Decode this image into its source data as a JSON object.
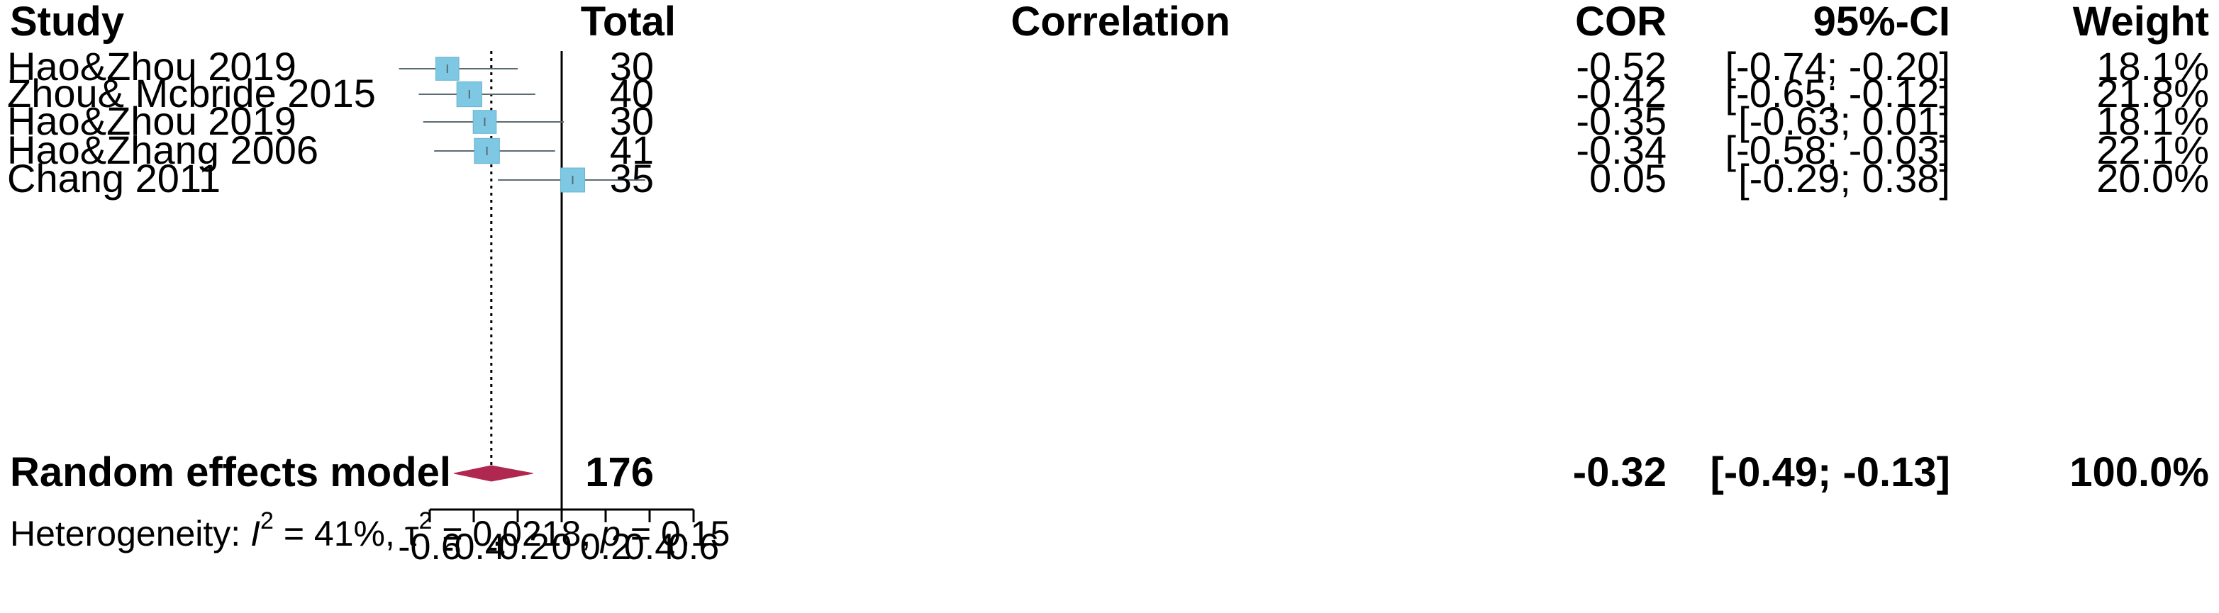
{
  "chart_data": {
    "type": "forest",
    "headers": {
      "study": "Study",
      "total": "Total",
      "correlation": "Correlation",
      "cor": "COR",
      "ci": "95%-CI",
      "weight": "Weight"
    },
    "studies": [
      {
        "label": "Hao&Zhou  2019",
        "total": "30",
        "cor": -0.52,
        "lower": -0.74,
        "upper": -0.2,
        "cor_text": "-0.52",
        "ci_text": "[-0.74; -0.20]",
        "weight": 18.1,
        "weight_text": "18.1%"
      },
      {
        "label": "Zhou& Mcbride  2015",
        "total": "40",
        "cor": -0.42,
        "lower": -0.65,
        "upper": -0.12,
        "cor_text": "-0.42",
        "ci_text": "[-0.65; -0.12]",
        "weight": 21.8,
        "weight_text": "21.8%"
      },
      {
        "label": "Hao&Zhou  2019",
        "total": "30",
        "cor": -0.35,
        "lower": -0.63,
        "upper": 0.01,
        "cor_text": "-0.35",
        "ci_text": "[-0.63;  0.01]",
        "weight": 18.1,
        "weight_text": "18.1%"
      },
      {
        "label": "Hao&Zhang  2006",
        "total": "41",
        "cor": -0.34,
        "lower": -0.58,
        "upper": -0.03,
        "cor_text": "-0.34",
        "ci_text": "[-0.58; -0.03]",
        "weight": 22.1,
        "weight_text": "22.1%"
      },
      {
        "label": "Chang  2011",
        "total": "35",
        "cor": 0.05,
        "lower": -0.29,
        "upper": 0.38,
        "cor_text": "0.05",
        "ci_text": "[-0.29;  0.38]",
        "weight": 20.0,
        "weight_text": "20.0%"
      }
    ],
    "summary": {
      "label": "Random effects model",
      "total": "176",
      "cor": -0.32,
      "lower": -0.49,
      "upper": -0.13,
      "cor_text": "-0.32",
      "ci_text": "[-0.49; -0.13]",
      "weight_text": "100.0%"
    },
    "heterogeneity": {
      "prefix": "Heterogeneity: ",
      "i2_symbol": "I",
      "i2_value": " = 41%, ",
      "tau2_symbol": "τ",
      "tau2_value": " = 0.0218, ",
      "p_symbol": "p",
      "p_value": " = 0.15",
      "superscript": "2"
    },
    "xaxis": {
      "range": [
        -0.6,
        0.6
      ],
      "ticks": [
        -0.6,
        -0.4,
        -0.2,
        0,
        0.2,
        0.4,
        0.6
      ],
      "tick_labels": [
        "-0.6",
        "-0.4",
        "-0.2",
        "0",
        "0.2",
        "0.4",
        "0.6"
      ]
    },
    "reference_line": 0,
    "colors": {
      "square": "#7ec8e3",
      "square_stroke": "#6ab4d2",
      "ci_line": "#5a6b74",
      "diamond": "#b0284f",
      "text": "#000000"
    }
  }
}
